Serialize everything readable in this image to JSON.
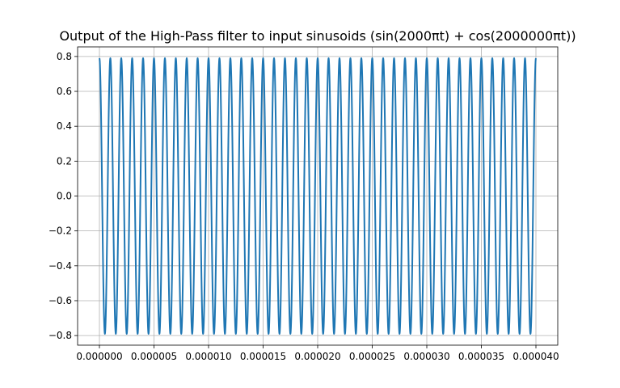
{
  "chart_data": {
    "type": "line",
    "title": "Output of the High-Pass filter to input sinusoids (sin(2000πt) + cos(2000000πt))",
    "xlabel": "",
    "ylabel": "",
    "xlim": [
      -2e-06,
      4.2e-05
    ],
    "ylim": [
      -0.855,
      0.855
    ],
    "grid": true,
    "x_ticks": [
      0,
      5e-06,
      1e-05,
      1.5e-05,
      2e-05,
      2.5e-05,
      3e-05,
      3.5e-05,
      4e-05
    ],
    "x_tick_labels": [
      "0.000000",
      "0.000005",
      "0.000010",
      "0.000015",
      "0.000020",
      "0.000025",
      "0.000030",
      "0.000035",
      "0.000040"
    ],
    "y_ticks": [
      -0.8,
      -0.6,
      -0.4,
      -0.2,
      0.0,
      0.2,
      0.4,
      0.6,
      0.8
    ],
    "y_tick_labels": [
      "−0.8",
      "−0.6",
      "−0.4",
      "−0.2",
      "0.0",
      "0.2",
      "0.4",
      "0.6",
      "0.8"
    ],
    "series": [
      {
        "color": "#1f77b4",
        "function": "amplitude * cos(2π·frequency·t + phase)",
        "amplitude": 0.79,
        "frequency": 1000000,
        "phase": 0,
        "t_start": 0,
        "t_end": 4e-05
      }
    ]
  }
}
